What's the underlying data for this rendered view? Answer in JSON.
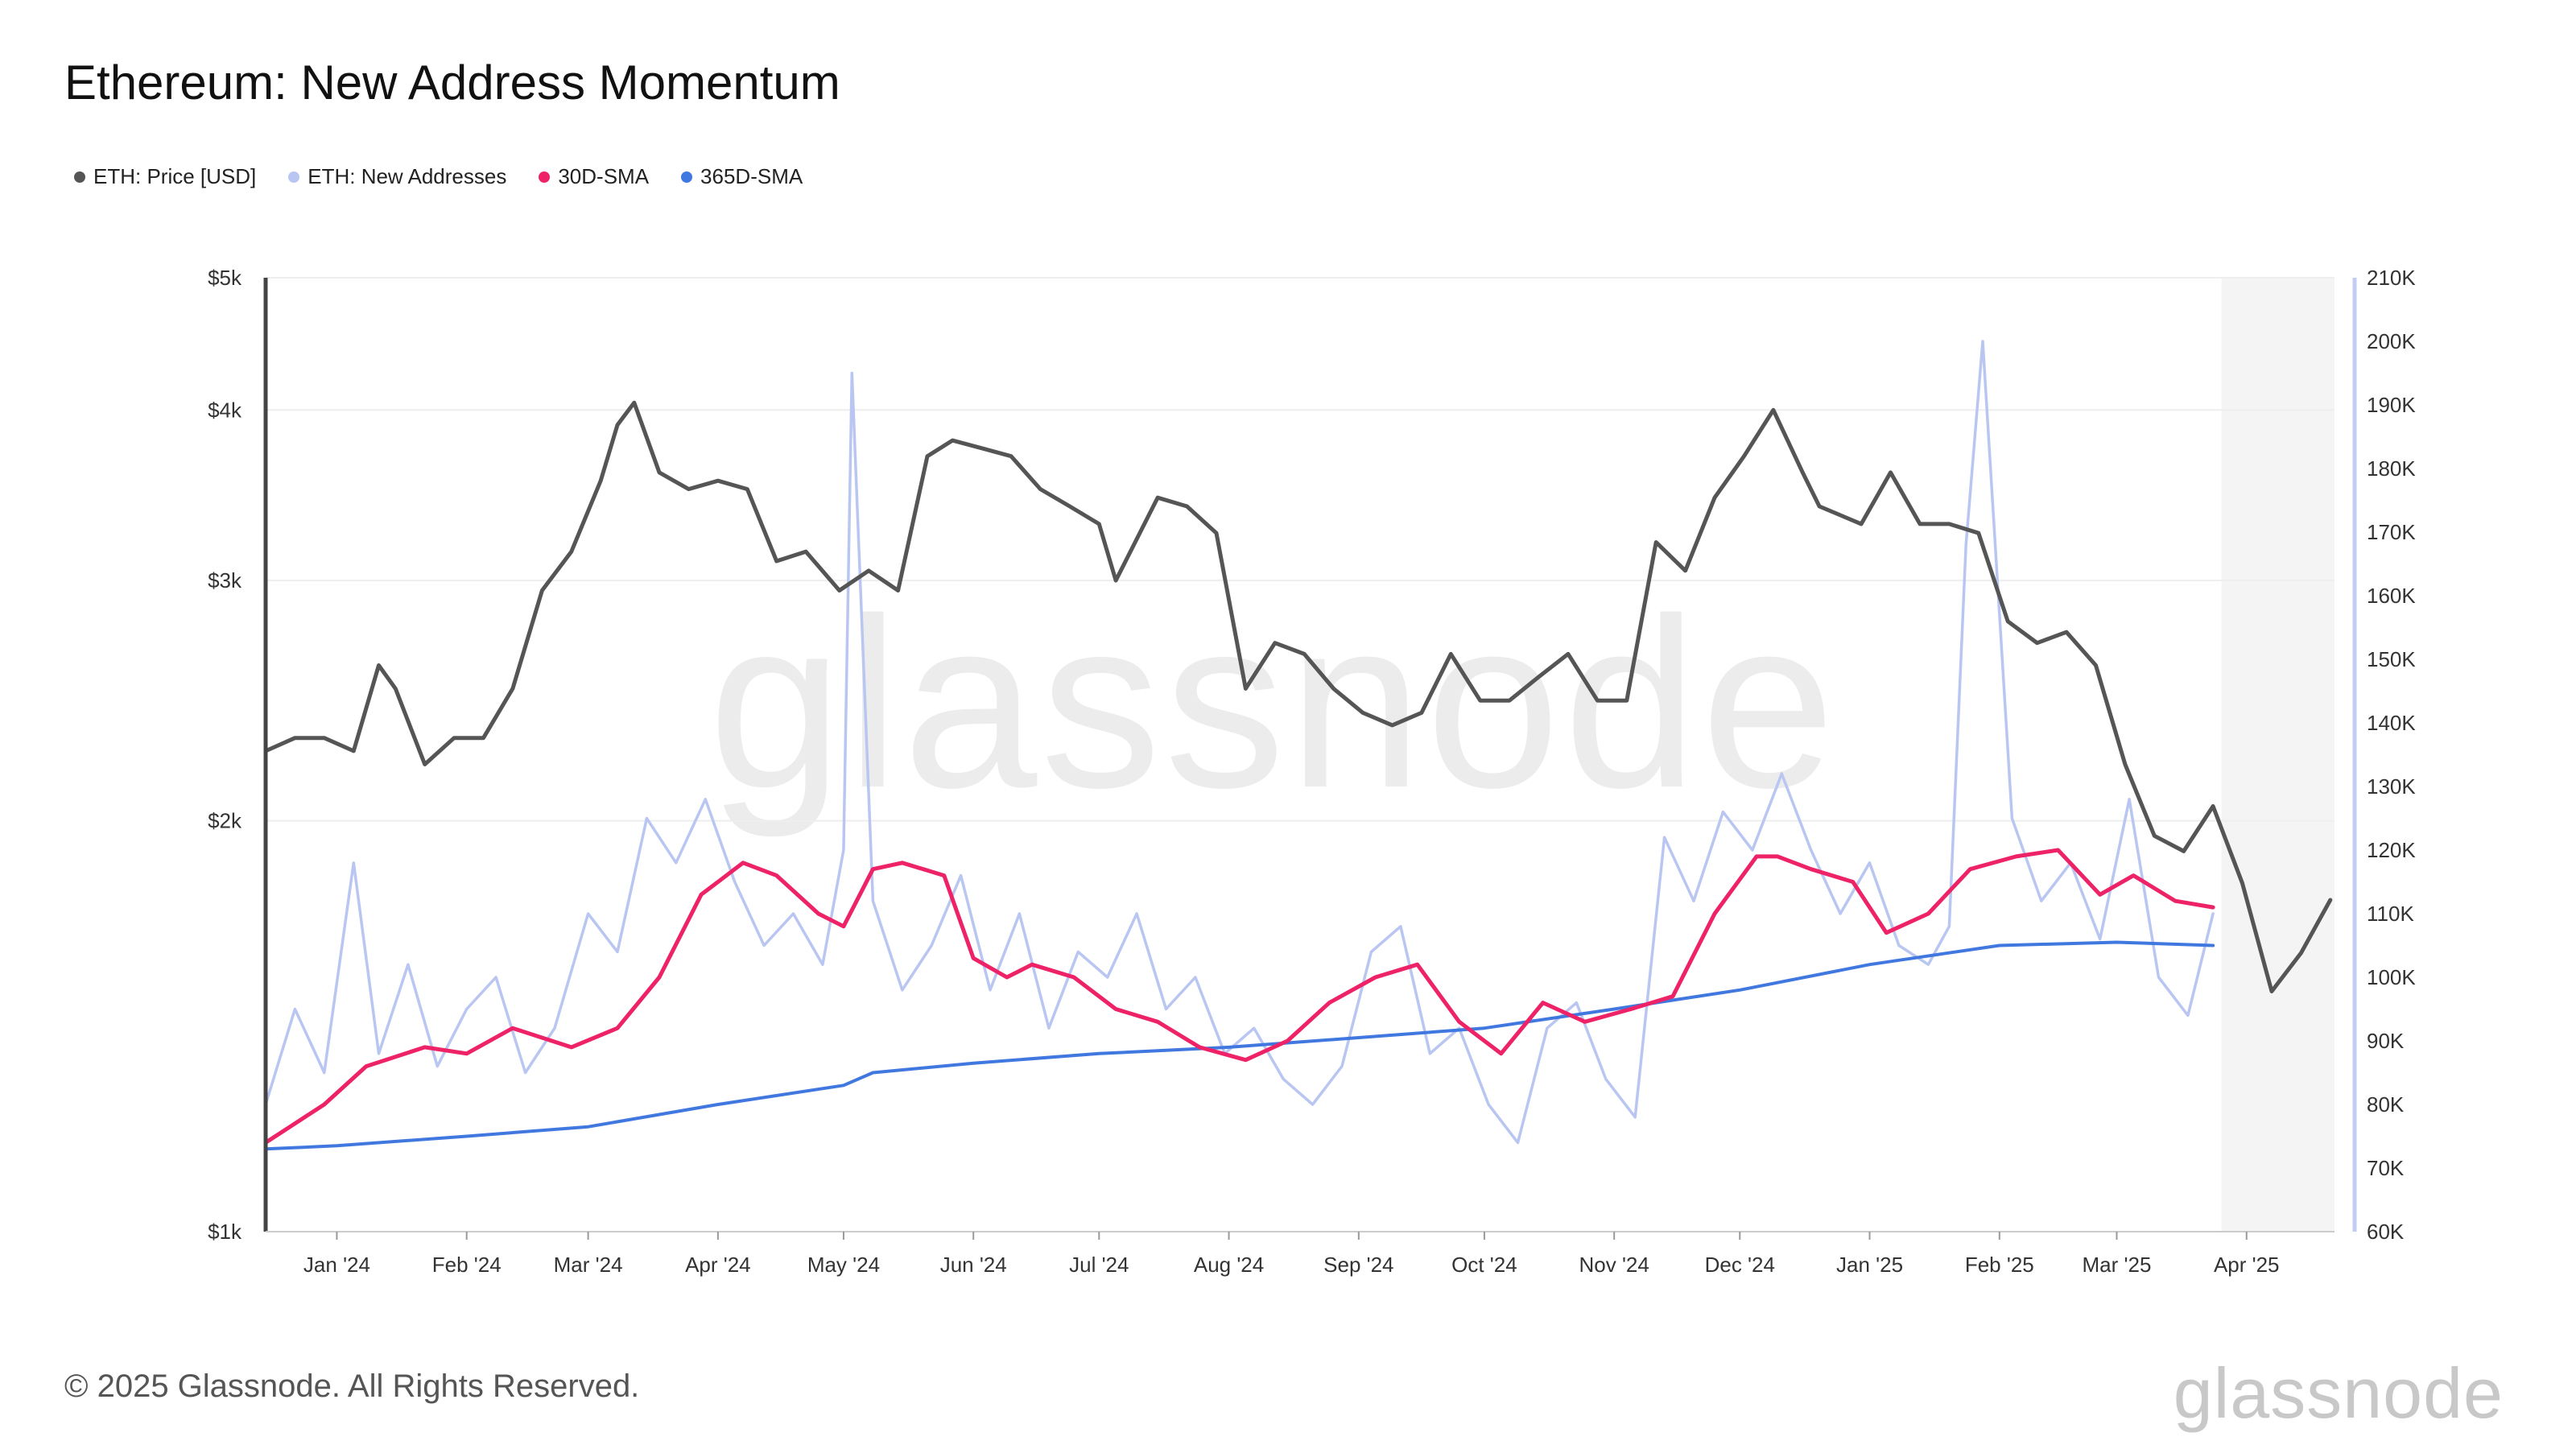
{
  "title": "Ethereum: New Address Momentum",
  "legend": [
    {
      "label": "ETH: Price [USD]",
      "color": "#555555"
    },
    {
      "label": "ETH: New Addresses",
      "color": "#b9c6f2"
    },
    {
      "label": "30D-SMA",
      "color": "#ee2266"
    },
    {
      "label": "365D-SMA",
      "color": "#4178e0"
    }
  ],
  "footer": "© 2025 Glassnode. All Rights Reserved.",
  "brand": "glassnode",
  "watermark": "glassnode",
  "chart_data": {
    "type": "line",
    "title": "Ethereum: New Address Momentum",
    "x_ticks": [
      "Jan '24",
      "Feb '24",
      "Mar '24",
      "Apr '24",
      "May '24",
      "Jun '24",
      "Jul '24",
      "Aug '24",
      "Sep '24",
      "Oct '24",
      "Nov '24",
      "Dec '24",
      "Jan '25",
      "Feb '25",
      "Mar '25",
      "Apr '25"
    ],
    "x_range": [
      "2023-12-15",
      "2025-04-22"
    ],
    "left_axis": {
      "scale": "log",
      "ylim": [
        1000,
        5000
      ],
      "ticks": [
        1000,
        2000,
        3000,
        4000,
        5000
      ],
      "tick_labels": [
        "$1k",
        "$2k",
        "$3k",
        "$4k",
        "$5k"
      ]
    },
    "right_axis": {
      "scale": "linear",
      "ylim": [
        60000,
        210000
      ],
      "ticks": [
        60000,
        70000,
        80000,
        90000,
        100000,
        110000,
        120000,
        130000,
        140000,
        150000,
        160000,
        170000,
        180000,
        190000,
        200000,
        210000
      ],
      "tick_labels": [
        "60K",
        "70K",
        "80K",
        "90K",
        "100K",
        "110K",
        "120K",
        "130K",
        "140K",
        "150K",
        "160K",
        "170K",
        "180K",
        "190K",
        "200K",
        "210K"
      ]
    },
    "shaded_region": {
      "start": "2025-03-26",
      "end": "2025-04-22"
    },
    "series": [
      {
        "name": "ETH: Price [USD]",
        "axis": "left",
        "color": "#555555",
        "x": [
          "2023-12-15",
          "2023-12-22",
          "2023-12-29",
          "2024-01-05",
          "2024-01-11",
          "2024-01-15",
          "2024-01-22",
          "2024-01-29",
          "2024-02-05",
          "2024-02-12",
          "2024-02-19",
          "2024-02-26",
          "2024-03-04",
          "2024-03-08",
          "2024-03-12",
          "2024-03-18",
          "2024-03-25",
          "2024-04-01",
          "2024-04-08",
          "2024-04-15",
          "2024-04-22",
          "2024-04-30",
          "2024-05-07",
          "2024-05-14",
          "2024-05-21",
          "2024-05-27",
          "2024-06-03",
          "2024-06-10",
          "2024-06-17",
          "2024-06-24",
          "2024-07-01",
          "2024-07-05",
          "2024-07-15",
          "2024-07-22",
          "2024-07-29",
          "2024-08-05",
          "2024-08-12",
          "2024-08-19",
          "2024-08-26",
          "2024-09-02",
          "2024-09-09",
          "2024-09-16",
          "2024-09-23",
          "2024-09-30",
          "2024-10-07",
          "2024-10-14",
          "2024-10-21",
          "2024-10-28",
          "2024-11-04",
          "2024-11-11",
          "2024-11-18",
          "2024-11-25",
          "2024-12-02",
          "2024-12-09",
          "2024-12-16",
          "2024-12-20",
          "2024-12-30",
          "2025-01-06",
          "2025-01-13",
          "2025-01-20",
          "2025-01-27",
          "2025-02-03",
          "2025-02-10",
          "2025-02-17",
          "2025-02-24",
          "2025-03-03",
          "2025-03-10",
          "2025-03-17",
          "2025-03-24",
          "2025-03-31",
          "2025-04-07",
          "2025-04-14",
          "2025-04-21"
        ],
        "values": [
          2250,
          2300,
          2300,
          2250,
          2600,
          2500,
          2200,
          2300,
          2300,
          2500,
          2950,
          3150,
          3550,
          3900,
          4050,
          3600,
          3500,
          3550,
          3500,
          3100,
          3150,
          2950,
          3050,
          2950,
          3700,
          3800,
          3750,
          3700,
          3500,
          3400,
          3300,
          3000,
          3450,
          3400,
          3250,
          2500,
          2700,
          2650,
          2500,
          2400,
          2350,
          2400,
          2650,
          2450,
          2450,
          2550,
          2650,
          2450,
          2450,
          3200,
          3050,
          3450,
          3700,
          4000,
          3600,
          3400,
          3300,
          3600,
          3300,
          3300,
          3250,
          2800,
          2700,
          2750,
          2600,
          2200,
          1950,
          1900,
          2050,
          1800,
          1500,
          1600,
          1750
        ]
      },
      {
        "name": "ETH: New Addresses",
        "axis": "right",
        "color": "#b9c6f2",
        "x": [
          "2023-12-15",
          "2023-12-22",
          "2023-12-29",
          "2024-01-05",
          "2024-01-11",
          "2024-01-18",
          "2024-01-25",
          "2024-02-01",
          "2024-02-08",
          "2024-02-15",
          "2024-02-22",
          "2024-03-01",
          "2024-03-08",
          "2024-03-15",
          "2024-03-22",
          "2024-03-29",
          "2024-04-05",
          "2024-04-12",
          "2024-04-19",
          "2024-04-26",
          "2024-05-01",
          "2024-05-03",
          "2024-05-08",
          "2024-05-15",
          "2024-05-22",
          "2024-05-29",
          "2024-06-05",
          "2024-06-12",
          "2024-06-19",
          "2024-06-26",
          "2024-07-03",
          "2024-07-10",
          "2024-07-17",
          "2024-07-24",
          "2024-07-31",
          "2024-08-07",
          "2024-08-14",
          "2024-08-21",
          "2024-08-28",
          "2024-09-04",
          "2024-09-11",
          "2024-09-18",
          "2024-09-25",
          "2024-10-02",
          "2024-10-09",
          "2024-10-16",
          "2024-10-23",
          "2024-10-30",
          "2024-11-06",
          "2024-11-13",
          "2024-11-20",
          "2024-11-27",
          "2024-12-04",
          "2024-12-11",
          "2024-12-18",
          "2024-12-25",
          "2025-01-01",
          "2025-01-08",
          "2025-01-15",
          "2025-01-20",
          "2025-01-24",
          "2025-01-28",
          "2025-02-04",
          "2025-02-11",
          "2025-02-18",
          "2025-02-25",
          "2025-03-04",
          "2025-03-11",
          "2025-03-18",
          "2025-03-24"
        ],
        "values": [
          80000,
          95000,
          85000,
          118000,
          88000,
          102000,
          86000,
          95000,
          100000,
          85000,
          92000,
          110000,
          104000,
          125000,
          118000,
          128000,
          115000,
          105000,
          110000,
          102000,
          120000,
          195000,
          112000,
          98000,
          105000,
          116000,
          98000,
          110000,
          92000,
          104000,
          100000,
          110000,
          95000,
          100000,
          88000,
          92000,
          84000,
          80000,
          86000,
          104000,
          108000,
          88000,
          92000,
          80000,
          74000,
          92000,
          96000,
          84000,
          78000,
          122000,
          112000,
          126000,
          120000,
          132000,
          120000,
          110000,
          118000,
          105000,
          102000,
          108000,
          168000,
          200000,
          125000,
          112000,
          118000,
          106000,
          128000,
          100000,
          94000,
          110000
        ]
      },
      {
        "name": "30D-SMA",
        "axis": "right",
        "color": "#ee2266",
        "x": [
          "2023-12-15",
          "2023-12-29",
          "2024-01-08",
          "2024-01-22",
          "2024-02-01",
          "2024-02-12",
          "2024-02-26",
          "2024-03-08",
          "2024-03-18",
          "2024-03-28",
          "2024-04-07",
          "2024-04-15",
          "2024-04-25",
          "2024-05-01",
          "2024-05-08",
          "2024-05-15",
          "2024-05-25",
          "2024-06-01",
          "2024-06-09",
          "2024-06-15",
          "2024-06-25",
          "2024-07-05",
          "2024-07-15",
          "2024-07-25",
          "2024-08-05",
          "2024-08-15",
          "2024-08-25",
          "2024-09-05",
          "2024-09-15",
          "2024-09-25",
          "2024-10-05",
          "2024-10-15",
          "2024-10-25",
          "2024-11-05",
          "2024-11-15",
          "2024-11-25",
          "2024-12-05",
          "2024-12-10",
          "2024-12-18",
          "2024-12-28",
          "2025-01-05",
          "2025-01-15",
          "2025-01-25",
          "2025-02-05",
          "2025-02-15",
          "2025-02-25",
          "2025-03-05",
          "2025-03-15",
          "2025-03-24"
        ],
        "values": [
          74000,
          80000,
          86000,
          89000,
          88000,
          92000,
          89000,
          92000,
          100000,
          113000,
          118000,
          116000,
          110000,
          108000,
          117000,
          118000,
          116000,
          103000,
          100000,
          102000,
          100000,
          95000,
          93000,
          89000,
          87000,
          90000,
          96000,
          100000,
          102000,
          93000,
          88000,
          96000,
          93000,
          95000,
          97000,
          110000,
          119000,
          119000,
          117000,
          115000,
          107000,
          110000,
          117000,
          119000,
          120000,
          113000,
          116000,
          112000,
          111000
        ]
      },
      {
        "name": "365D-SMA",
        "axis": "right",
        "color": "#4178e0",
        "x": [
          "2023-12-15",
          "2024-01-01",
          "2024-02-01",
          "2024-03-01",
          "2024-04-01",
          "2024-05-01",
          "2024-05-08",
          "2024-06-01",
          "2024-07-01",
          "2024-08-01",
          "2024-09-01",
          "2024-10-01",
          "2024-11-01",
          "2024-12-01",
          "2025-01-01",
          "2025-02-01",
          "2025-03-01",
          "2025-03-24"
        ],
        "values": [
          73000,
          73500,
          75000,
          76500,
          80000,
          83000,
          85000,
          86500,
          88000,
          89000,
          90500,
          92000,
          95000,
          98000,
          102000,
          105000,
          105500,
          105000
        ]
      }
    ]
  }
}
